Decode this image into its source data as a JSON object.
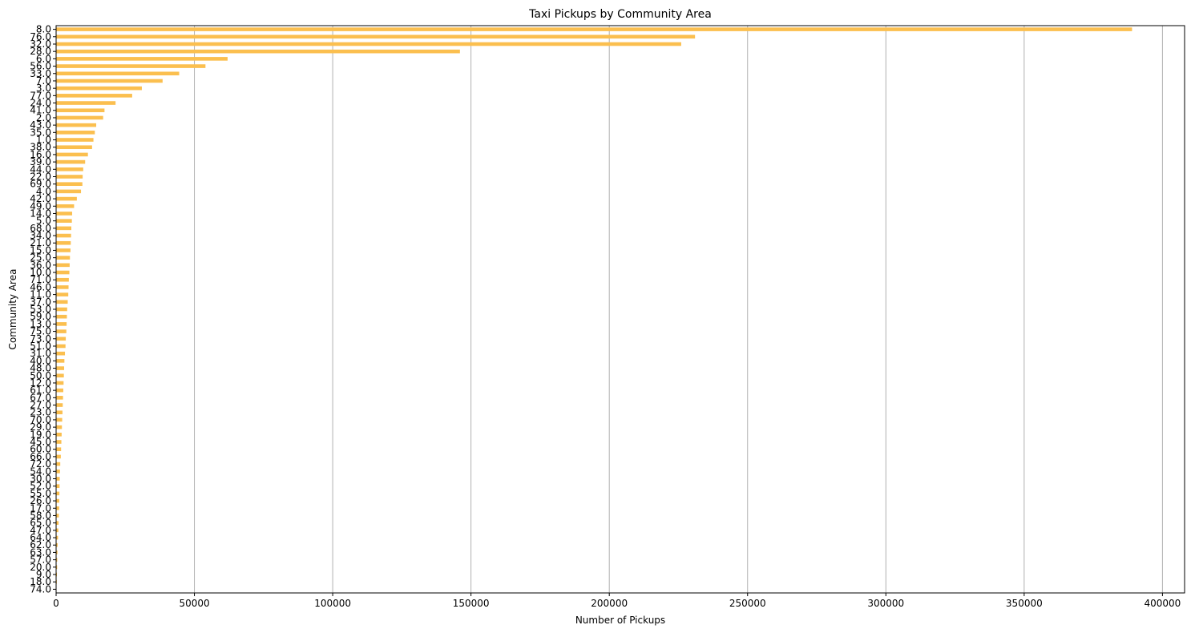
{
  "chart_data": {
    "type": "bar",
    "orientation": "horizontal",
    "title": "Taxi Pickups by Community Area",
    "xlabel": "Number of Pickups",
    "ylabel": "Community Area",
    "xlim": [
      0,
      408000
    ],
    "xticks": [
      "0",
      "50000",
      "100000",
      "150000",
      "200000",
      "250000",
      "300000",
      "350000",
      "400000"
    ],
    "grid": "x",
    "bar_color": "#fbbf4f",
    "categories": [
      "8.0",
      "76.0",
      "32.0",
      "28.0",
      "6.0",
      "56.0",
      "33.0",
      "7.0",
      "3.0",
      "77.0",
      "24.0",
      "41.0",
      "2.0",
      "43.0",
      "35.0",
      "1.0",
      "38.0",
      "16.0",
      "39.0",
      "44.0",
      "22.0",
      "69.0",
      "4.0",
      "42.0",
      "49.0",
      "14.0",
      "5.0",
      "68.0",
      "34.0",
      "21.0",
      "15.0",
      "25.0",
      "36.0",
      "10.0",
      "71.0",
      "46.0",
      "11.0",
      "37.0",
      "53.0",
      "59.0",
      "13.0",
      "75.0",
      "73.0",
      "51.0",
      "31.0",
      "40.0",
      "48.0",
      "50.0",
      "12.0",
      "61.0",
      "67.0",
      "27.0",
      "23.0",
      "70.0",
      "29.0",
      "19.0",
      "45.0",
      "60.0",
      "66.0",
      "72.0",
      "54.0",
      "30.0",
      "52.0",
      "55.0",
      "26.0",
      "17.0",
      "58.0",
      "65.0",
      "47.0",
      "64.0",
      "62.0",
      "63.0",
      "57.0",
      "20.0",
      "9.0",
      "18.0",
      "74.0"
    ],
    "values": [
      389000,
      231000,
      226000,
      146000,
      62000,
      54000,
      44500,
      38500,
      31000,
      27500,
      21500,
      17500,
      17000,
      14500,
      14000,
      13500,
      13000,
      11500,
      10500,
      9800,
      9600,
      9500,
      9000,
      7500,
      6500,
      5800,
      5700,
      5500,
      5400,
      5300,
      5200,
      5000,
      4900,
      4800,
      4600,
      4500,
      4400,
      4200,
      4000,
      3900,
      3800,
      3700,
      3500,
      3400,
      3200,
      3000,
      2900,
      2800,
      2700,
      2600,
      2500,
      2400,
      2300,
      2200,
      2100,
      2000,
      1900,
      1800,
      1700,
      1500,
      1400,
      1300,
      1250,
      1200,
      1150,
      1100,
      1000,
      900,
      800,
      700,
      550,
      500,
      420,
      380,
      300,
      250,
      150
    ]
  }
}
